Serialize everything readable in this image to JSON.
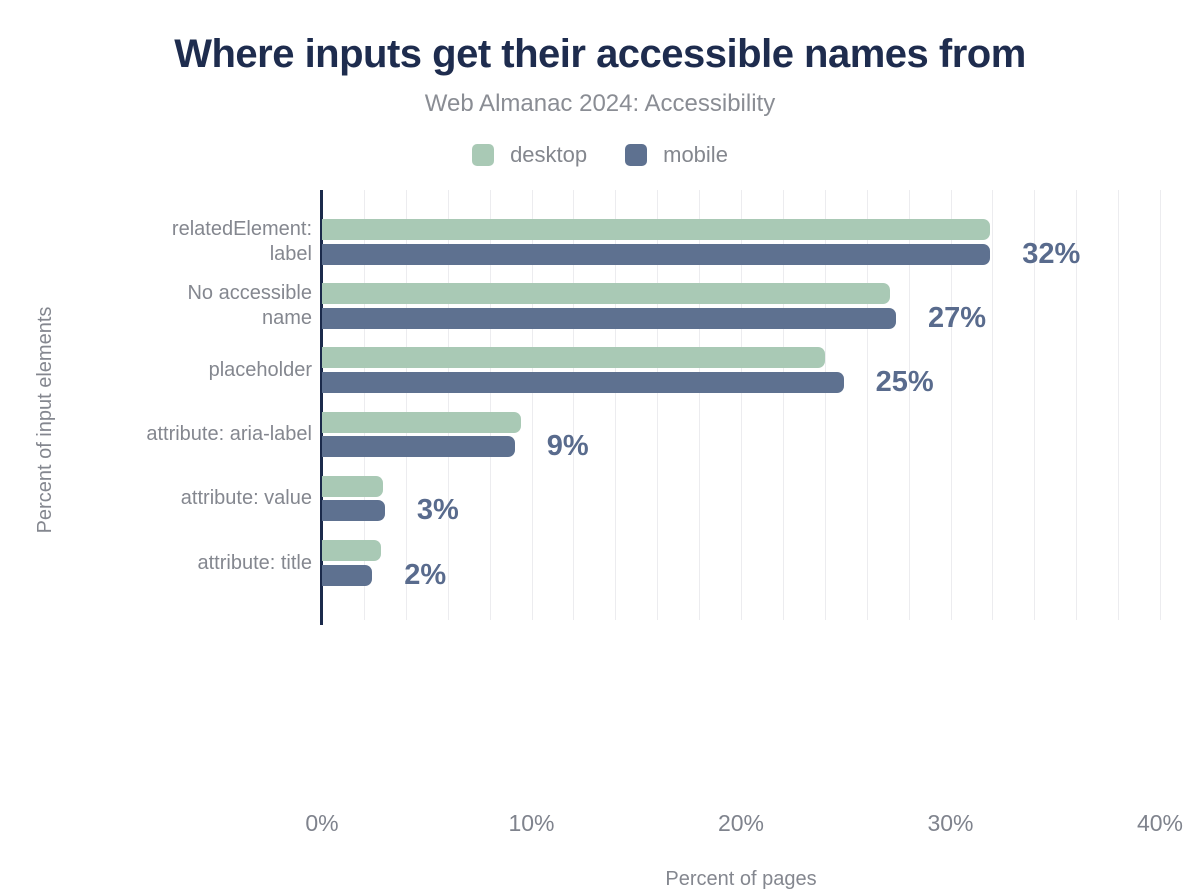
{
  "chart": {
    "title": "Where inputs get their accessible names from",
    "subtitle": "Web Almanac 2024: Accessibility",
    "x_title": "Percent of pages",
    "y_title": "Percent of input elements"
  },
  "legend": {
    "items": [
      {
        "label": "desktop",
        "color": "#a9c9b5"
      },
      {
        "label": "mobile",
        "color": "#5e7190"
      }
    ]
  },
  "chart_data": {
    "type": "bar",
    "orientation": "horizontal",
    "title": "Where inputs get their accessible names from",
    "subtitle": "Web Almanac 2024: Accessibility",
    "xlabel": "Percent of pages",
    "ylabel": "Percent of input elements",
    "xlim": [
      0,
      40
    ],
    "x_ticks": [
      "0%",
      "10%",
      "20%",
      "30%",
      "40%"
    ],
    "x_tick_values": [
      0,
      10,
      20,
      30,
      40
    ],
    "gridline_step": 2,
    "grid": true,
    "legend_position": "top",
    "categories": [
      "relatedElement: label",
      "No accessible name",
      "placeholder",
      "attribute: aria-label",
      "attribute: value",
      "attribute: title"
    ],
    "category_lines": [
      [
        "relatedElement:",
        "label"
      ],
      [
        "No accessible",
        "name"
      ],
      [
        "placeholder"
      ],
      [
        "attribute: aria-label"
      ],
      [
        "attribute: value"
      ],
      [
        "attribute: title"
      ]
    ],
    "series": [
      {
        "name": "desktop",
        "color": "#a9c9b5",
        "values": [
          31.9,
          27.1,
          24.0,
          9.5,
          2.9,
          2.8
        ]
      },
      {
        "name": "mobile",
        "color": "#5e7190",
        "values": [
          31.9,
          27.4,
          24.9,
          9.2,
          3.0,
          2.4
        ]
      }
    ],
    "data_labels": [
      "32%",
      "27%",
      "25%",
      "9%",
      "3%",
      "2%"
    ],
    "data_label_color": "#596b8d",
    "axis_line_color": "#1b2a4b",
    "gridline_color": "#ececef"
  }
}
